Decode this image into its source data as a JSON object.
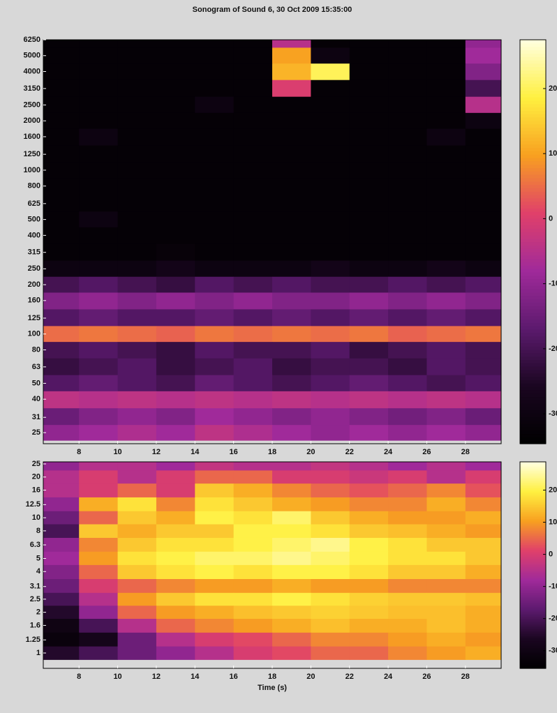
{
  "chart_data": [
    {
      "type": "heatmap",
      "title": "Sonogram of Sound 6, 30 Oct 2009 15:35:00",
      "x": [
        7,
        9,
        11,
        13,
        15,
        17,
        19,
        21,
        23,
        25,
        27,
        29
      ],
      "y": [
        6250,
        5000,
        4000,
        3150,
        2500,
        2000,
        1600,
        1250,
        1000,
        800,
        625,
        500,
        400,
        315,
        250,
        200,
        160,
        125,
        100,
        80,
        63,
        50,
        40,
        31,
        25
      ],
      "z": [
        [
          -33,
          -33,
          -33,
          -33,
          -33,
          -33,
          -5,
          -33,
          -33,
          -33,
          -33,
          -10
        ],
        [
          -33,
          -33,
          -33,
          -33,
          -33,
          -33,
          10,
          -30,
          -33,
          -33,
          -33,
          -8
        ],
        [
          -33,
          -33,
          -33,
          -33,
          -33,
          -33,
          12,
          20,
          -33,
          -33,
          -33,
          -12
        ],
        [
          -33,
          -33,
          -33,
          -33,
          -33,
          -33,
          0,
          -33,
          -33,
          -33,
          -33,
          -20
        ],
        [
          -33,
          -33,
          -33,
          -33,
          -30,
          -33,
          -33,
          -33,
          -33,
          -33,
          -33,
          -5
        ],
        [
          -33,
          -33,
          -33,
          -33,
          -33,
          -33,
          -33,
          -33,
          -33,
          -33,
          -33,
          -30
        ],
        [
          -33,
          -30,
          -33,
          -33,
          -33,
          -33,
          -33,
          -33,
          -33,
          -33,
          -30,
          -33
        ],
        [
          -33,
          -33,
          -33,
          -33,
          -33,
          -33,
          -33,
          -33,
          -33,
          -33,
          -33,
          -33
        ],
        [
          -33,
          -33,
          -33,
          -33,
          -33,
          -33,
          -33,
          -33,
          -33,
          -33,
          -33,
          -33
        ],
        [
          -33,
          -33,
          -33,
          -33,
          -33,
          -33,
          -33,
          -33,
          -33,
          -33,
          -33,
          -33
        ],
        [
          -33,
          -33,
          -33,
          -33,
          -33,
          -33,
          -33,
          -33,
          -33,
          -33,
          -33,
          -33
        ],
        [
          -33,
          -30,
          -33,
          -33,
          -33,
          -33,
          -33,
          -33,
          -33,
          -33,
          -33,
          -33
        ],
        [
          -33,
          -33,
          -33,
          -33,
          -33,
          -33,
          -33,
          -33,
          -33,
          -33,
          -33,
          -33
        ],
        [
          -33,
          -33,
          -33,
          -32,
          -33,
          -33,
          -33,
          -33,
          -33,
          -33,
          -33,
          -33
        ],
        [
          -30,
          -30,
          -30,
          -28,
          -30,
          -30,
          -30,
          -28,
          -30,
          -30,
          -28,
          -30
        ],
        [
          -20,
          -18,
          -20,
          -22,
          -18,
          -20,
          -18,
          -20,
          -20,
          -18,
          -20,
          -18
        ],
        [
          -12,
          -10,
          -12,
          -10,
          -12,
          -10,
          -12,
          -12,
          -10,
          -12,
          -10,
          -12
        ],
        [
          -18,
          -16,
          -18,
          -18,
          -16,
          -18,
          -16,
          -18,
          -16,
          -18,
          -16,
          -18
        ],
        [
          5,
          6,
          5,
          4,
          6,
          5,
          6,
          5,
          6,
          4,
          5,
          6
        ],
        [
          -20,
          -18,
          -20,
          -22,
          -18,
          -20,
          -20,
          -18,
          -22,
          -20,
          -18,
          -20
        ],
        [
          -22,
          -20,
          -18,
          -22,
          -20,
          -18,
          -22,
          -20,
          -20,
          -22,
          -18,
          -20
        ],
        [
          -18,
          -16,
          -18,
          -20,
          -16,
          -18,
          -20,
          -18,
          -16,
          -18,
          -20,
          -18
        ],
        [
          -4,
          -5,
          -4,
          -5,
          -4,
          -5,
          -4,
          -5,
          -4,
          -5,
          -4,
          -5
        ],
        [
          -15,
          -12,
          -10,
          -12,
          -8,
          -10,
          -12,
          -10,
          -12,
          -14,
          -12,
          -15
        ],
        [
          -10,
          -8,
          -6,
          -8,
          -4,
          -6,
          -8,
          -10,
          -8,
          -10,
          -8,
          -10
        ]
      ],
      "clim": [
        -34.6,
        27.5
      ],
      "cticks": [
        20,
        10,
        0,
        -10,
        -20,
        -30
      ],
      "colormap": [
        "#000000",
        "#1a0620",
        "#5c1a6e",
        "#a02a9a",
        "#e0406a",
        "#f8a020",
        "#fff040",
        "#ffffe0"
      ],
      "xlim": [
        6.15,
        29.85
      ],
      "xticks": [
        8,
        10,
        12,
        14,
        16,
        18,
        20,
        22,
        24,
        26,
        28
      ],
      "ylim": [
        21.4,
        6250
      ],
      "log_y": true,
      "yticks": [
        6250,
        5000,
        4000,
        3150,
        2500,
        2000,
        1600,
        1250,
        1000,
        800,
        625,
        500,
        400,
        315,
        250,
        200,
        160,
        125,
        100,
        80,
        63,
        50,
        40,
        31,
        25
      ]
    },
    {
      "type": "heatmap",
      "xlabel": "Time (s)",
      "x": [
        7,
        9,
        11,
        13,
        15,
        17,
        19,
        21,
        23,
        25,
        27,
        29
      ],
      "y": [
        25,
        20,
        16,
        12.5,
        10,
        8,
        6.3,
        5,
        4,
        3.1,
        2.5,
        2,
        1.6,
        1.25,
        1
      ],
      "z": [
        [
          -10,
          -5,
          -5,
          -8,
          -3,
          -5,
          -5,
          -3,
          -5,
          -8,
          -5,
          -8
        ],
        [
          -5,
          0,
          -5,
          0,
          5,
          5,
          0,
          0,
          -2,
          0,
          -5,
          0
        ],
        [
          -5,
          0,
          5,
          0,
          15,
          12,
          8,
          5,
          3,
          5,
          8,
          3
        ],
        [
          -10,
          12,
          18,
          8,
          18,
          15,
          12,
          10,
          8,
          8,
          12,
          8
        ],
        [
          -15,
          5,
          15,
          12,
          20,
          18,
          22,
          15,
          12,
          10,
          10,
          12
        ],
        [
          -20,
          15,
          12,
          15,
          15,
          20,
          20,
          18,
          15,
          14,
          12,
          10
        ],
        [
          -10,
          8,
          15,
          18,
          18,
          20,
          22,
          24,
          20,
          18,
          15,
          15
        ],
        [
          -8,
          10,
          18,
          20,
          22,
          22,
          24,
          22,
          20,
          18,
          18,
          15
        ],
        [
          -12,
          5,
          15,
          18,
          20,
          18,
          20,
          20,
          18,
          15,
          15,
          12
        ],
        [
          -15,
          0,
          5,
          8,
          10,
          10,
          12,
          10,
          10,
          8,
          8,
          8
        ],
        [
          -20,
          -5,
          10,
          15,
          18,
          18,
          20,
          18,
          16,
          15,
          15,
          14
        ],
        [
          -25,
          -10,
          5,
          10,
          12,
          14,
          15,
          16,
          15,
          14,
          14,
          12
        ],
        [
          -30,
          -20,
          -5,
          5,
          8,
          10,
          12,
          14,
          12,
          12,
          14,
          12
        ],
        [
          -32,
          -28,
          -15,
          -5,
          0,
          2,
          5,
          8,
          8,
          10,
          12,
          10
        ],
        [
          -25,
          -20,
          -15,
          -10,
          -5,
          0,
          2,
          5,
          5,
          8,
          10,
          12
        ]
      ],
      "clim": [
        -35.5,
        28.8
      ],
      "cticks": [
        20,
        10,
        0,
        -10,
        -20,
        -30
      ],
      "colormap": [
        "#000000",
        "#1a0620",
        "#5c1a6e",
        "#a02a9a",
        "#e0406a",
        "#f8a020",
        "#fff040",
        "#ffffe0"
      ],
      "xlim": [
        6.15,
        29.85
      ],
      "xticks": [
        8,
        10,
        12,
        14,
        16,
        18,
        20,
        22,
        24,
        26,
        28
      ],
      "ylim": [
        0.77,
        25.9
      ],
      "log_y": true,
      "yticks": [
        25,
        20,
        16,
        12.5,
        10,
        8,
        6.3,
        5,
        4,
        3.1,
        2.5,
        2,
        1.6,
        1.25,
        1
      ]
    }
  ]
}
